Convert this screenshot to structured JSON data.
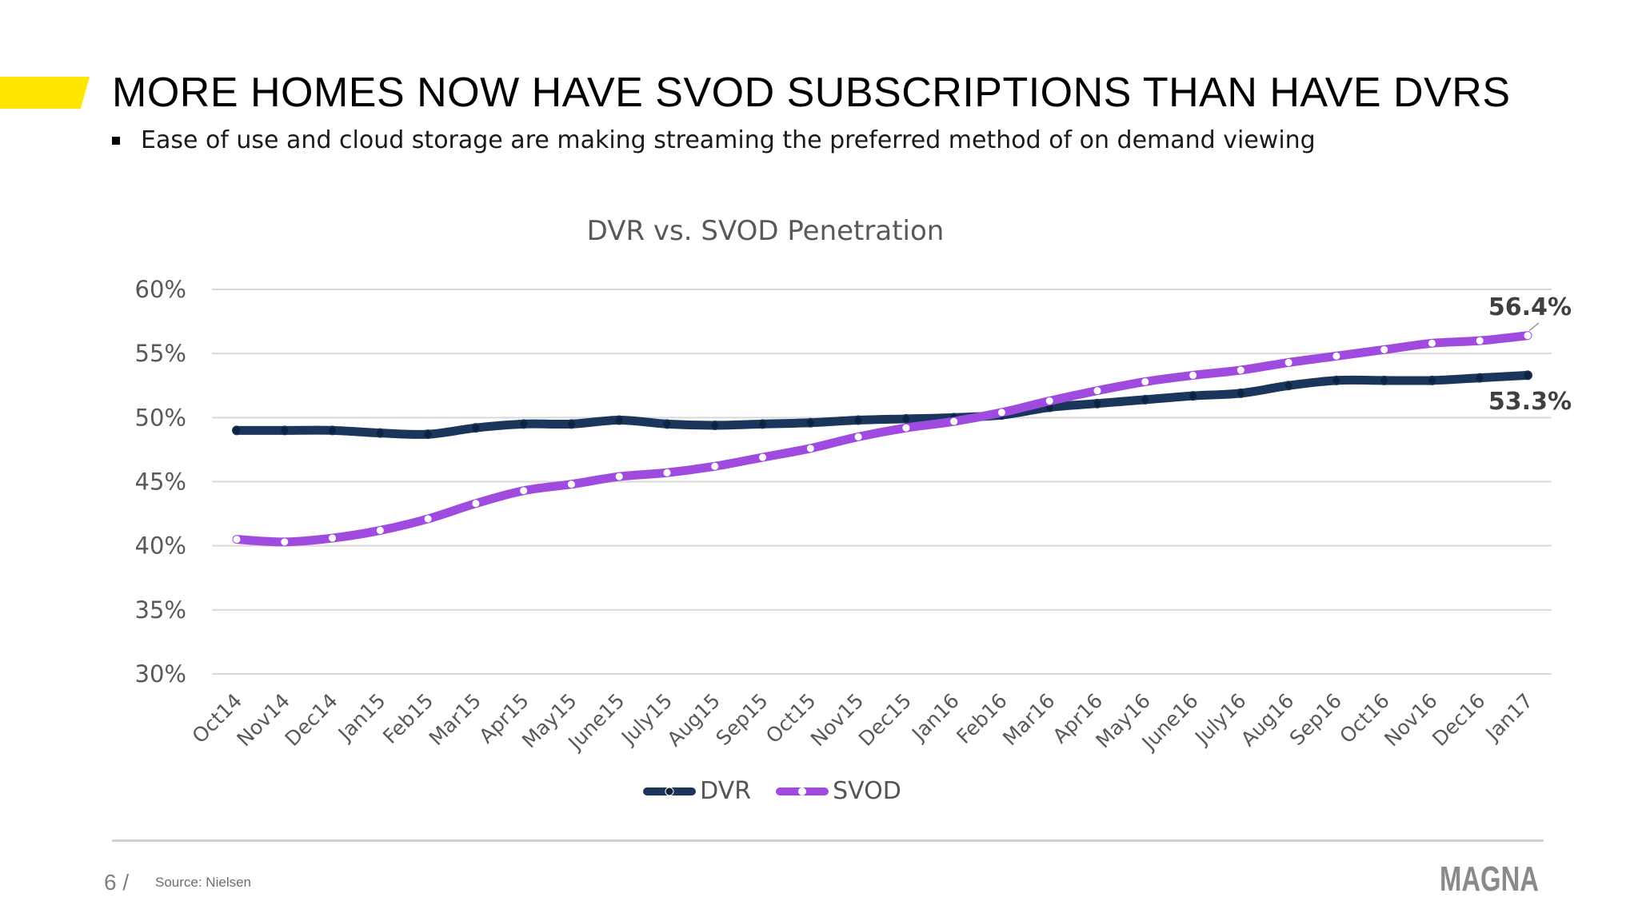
{
  "slide": {
    "title": "MORE HOMES NOW HAVE SVOD SUBSCRIPTIONS THAN HAVE DVRS",
    "bullet": "Ease of use and cloud storage are making streaming the preferred method of on demand viewing",
    "page_number": "6 /",
    "source": "Source: Nielsen",
    "logo_text": "MAGNA",
    "accent_color": "#FFE600"
  },
  "chart_data": {
    "type": "line",
    "title": "DVR vs. SVOD Penetration",
    "xlabel": "",
    "ylabel": "",
    "x": [
      "Oct14",
      "Nov14",
      "Dec14",
      "Jan15",
      "Feb15",
      "Mar15",
      "Apr15",
      "May15",
      "June15",
      "July15",
      "Aug15",
      "Sep15",
      "Oct15",
      "Nov15",
      "Dec15",
      "Jan16",
      "Feb16",
      "Mar16",
      "Apr16",
      "May16",
      "June16",
      "July16",
      "Aug16",
      "Sep16",
      "Oct16",
      "Nov16",
      "Dec16",
      "Jan17"
    ],
    "ylim": [
      30,
      60
    ],
    "yticks": [
      30,
      35,
      40,
      45,
      50,
      55,
      60
    ],
    "ytick_labels": [
      "30%",
      "35%",
      "40%",
      "45%",
      "50%",
      "55%",
      "60%"
    ],
    "grid": true,
    "legend": "bottom",
    "series": [
      {
        "name": "DVR",
        "color": "#1B365D",
        "values": [
          49.0,
          49.0,
          49.0,
          48.8,
          48.7,
          49.2,
          49.5,
          49.5,
          49.8,
          49.5,
          49.4,
          49.5,
          49.6,
          49.8,
          49.9,
          50.0,
          50.2,
          50.8,
          51.1,
          51.4,
          51.7,
          51.9,
          52.5,
          52.9,
          52.9,
          52.9,
          53.1,
          53.3
        ],
        "end_label": "53.3%"
      },
      {
        "name": "SVOD",
        "color": "#A04BE0",
        "values": [
          40.5,
          40.3,
          40.6,
          41.2,
          42.1,
          43.3,
          44.3,
          44.8,
          45.4,
          45.7,
          46.2,
          46.9,
          47.6,
          48.5,
          49.2,
          49.7,
          50.4,
          51.3,
          52.1,
          52.8,
          53.3,
          53.7,
          54.3,
          54.8,
          55.3,
          55.8,
          56.0,
          56.4
        ],
        "end_label": "56.4%"
      }
    ]
  }
}
